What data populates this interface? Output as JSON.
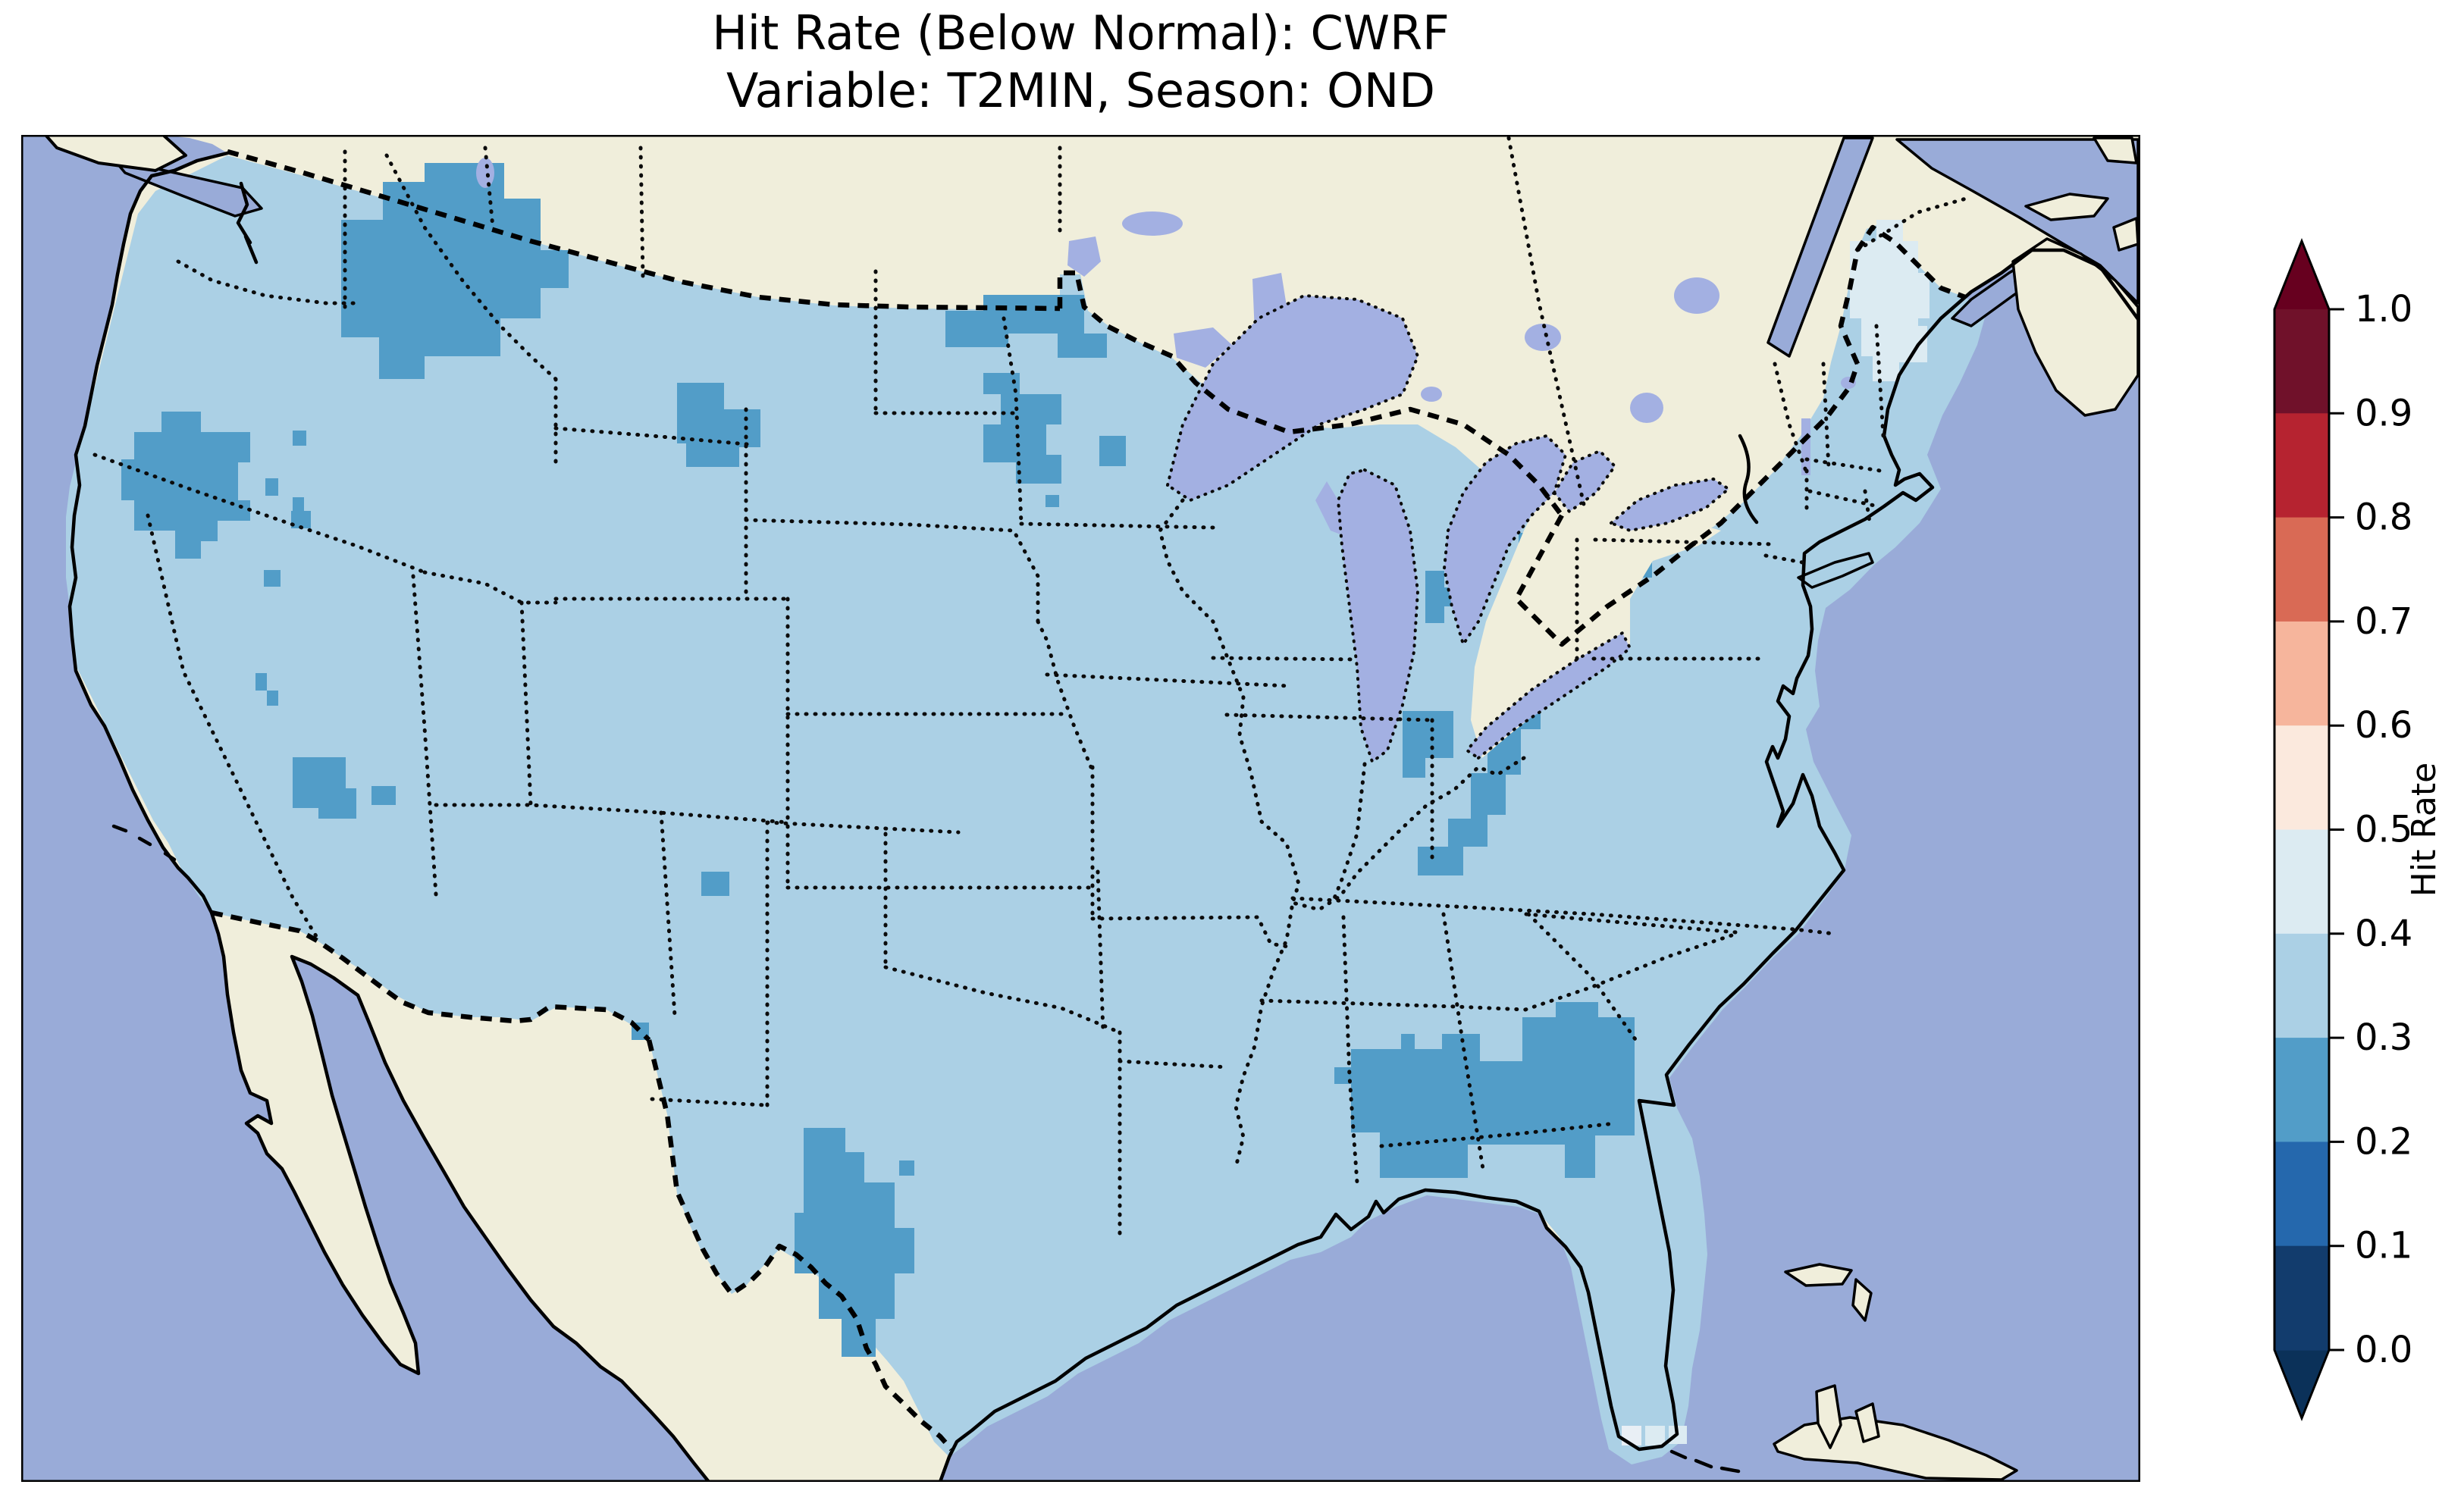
{
  "title": {
    "line1": "Hit Rate (Below Normal): CWRF",
    "line2": "Variable: T2MIN, Season: OND"
  },
  "colorbar": {
    "label": "Hit Rate",
    "ticks": [
      "1.0",
      "0.9",
      "0.8",
      "0.7",
      "0.6",
      "0.5",
      "0.4",
      "0.3",
      "0.2",
      "0.1",
      "0.0"
    ],
    "extend": "both",
    "band_colors_top_to_bottom": [
      "#70112a",
      "#b62330",
      "#d96a55",
      "#f6b59c",
      "#fbe9dd",
      "#dcebf2",
      "#abd0e5",
      "#529dc8",
      "#2568ad",
      "#123c6d"
    ],
    "arrow_top_color": "#67001f",
    "arrow_bottom_color": "#0b3159"
  },
  "theme": {
    "ocean": "#99abd8",
    "land": "#f0eedb",
    "lake": "#a3b0e2",
    "band23": "#529dc8",
    "band34": "#abd0e5",
    "band45": "#dcebf2",
    "band56x": "#e9eff5",
    "frame": "#000000"
  },
  "chart_data": {
    "type": "heatmap",
    "subtype": "geographic-choropleth-grid",
    "model": "CWRF",
    "metric": "Hit Rate (Below Normal)",
    "variable": "T2MIN",
    "season": "OND",
    "region": "Contiguous United States",
    "colorbar_label": "Hit Rate",
    "value_ticks": [
      0.0,
      0.1,
      0.2,
      0.3,
      0.4,
      0.5,
      0.6,
      0.7,
      0.8,
      0.9,
      1.0
    ],
    "bin_width": 0.1,
    "colormap": "RdBu_r (discrete, extend both)",
    "dominant_band": "0.3-0.4 over most of CONUS",
    "regions_band_0_2_to_0_3": [
      "northwest Montana / Idaho panhandle",
      "coastal Oregon and far northern California",
      "small cells in central & southern Nevada",
      "Black Hills (NE Wyoming / W South Dakota)",
      "northern North Dakota",
      "eastern South Dakota / western Minnesota",
      "small cell NE New Mexico",
      "Big Bend / Rio Grande Texas",
      "northern Indiana (south of Lake Michigan)",
      "western New York through Ohio Valley, West Virginia and Kentucky",
      "central Alabama through Georgia into the Florida panhandle"
    ],
    "regions_band_0_4_to_0_5": [
      "central and eastern Maine",
      "isolated cells near the Florida Keys"
    ],
    "legend_position": "right vertical colorbar",
    "grid": false
  }
}
